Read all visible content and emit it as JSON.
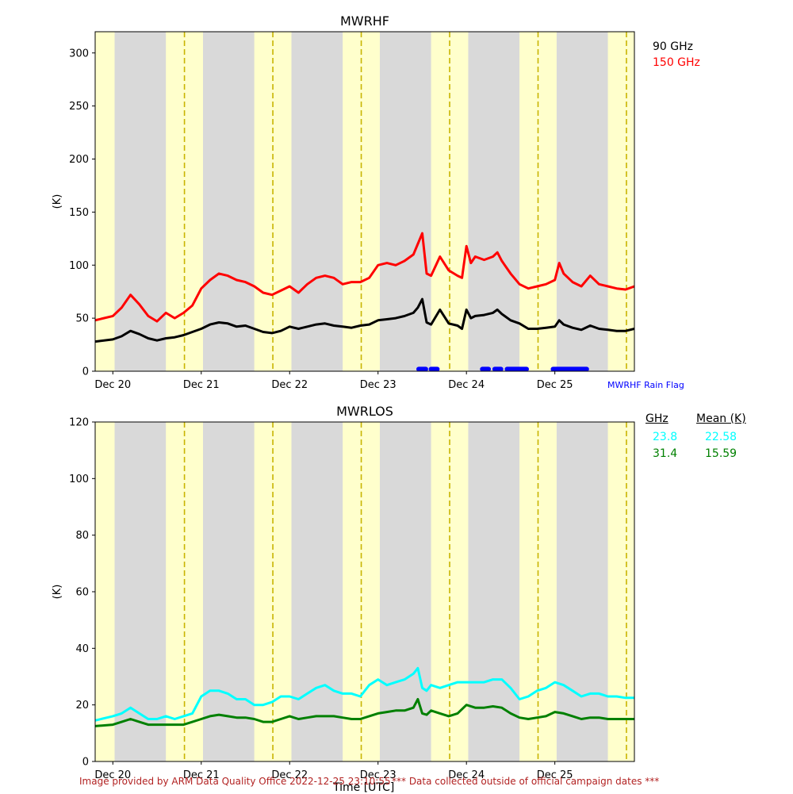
{
  "chart_data": [
    {
      "type": "line",
      "title": "MWRHF",
      "ylabel": "(K)",
      "ylim": [
        0,
        320
      ],
      "yticks": [
        0,
        50,
        100,
        150,
        200,
        250,
        300
      ],
      "xlim": [
        -0.2,
        5.9
      ],
      "xticks": [
        0,
        1,
        2,
        3,
        4,
        5
      ],
      "xticklabels": [
        "Dec 20",
        "Dec 21",
        "Dec 22",
        "Dec 23",
        "Dec 24",
        "Dec 25"
      ],
      "day_bands": [
        [
          -0.2,
          0.02
        ],
        [
          0.6,
          1.02
        ],
        [
          1.6,
          2.02
        ],
        [
          2.6,
          3.02
        ],
        [
          3.6,
          4.02
        ],
        [
          4.6,
          5.02
        ],
        [
          5.6,
          5.9
        ]
      ],
      "noon_lines": [
        0.81,
        1.81,
        2.81,
        3.81,
        4.81,
        5.81
      ],
      "series": [
        {
          "name": "90 GHz",
          "color": "#000000",
          "x": [
            -0.2,
            0.0,
            0.1,
            0.2,
            0.3,
            0.4,
            0.5,
            0.6,
            0.7,
            0.8,
            0.9,
            1.0,
            1.1,
            1.2,
            1.3,
            1.4,
            1.5,
            1.6,
            1.7,
            1.8,
            1.9,
            2.0,
            2.1,
            2.2,
            2.3,
            2.4,
            2.5,
            2.6,
            2.7,
            2.8,
            2.9,
            3.0,
            3.1,
            3.2,
            3.3,
            3.4,
            3.45,
            3.5,
            3.55,
            3.6,
            3.7,
            3.8,
            3.9,
            3.95,
            4.0,
            4.05,
            4.1,
            4.2,
            4.3,
            4.35,
            4.4,
            4.5,
            4.6,
            4.7,
            4.8,
            4.9,
            5.0,
            5.05,
            5.1,
            5.2,
            5.3,
            5.4,
            5.5,
            5.6,
            5.7,
            5.8,
            5.9
          ],
          "y": [
            28,
            30,
            33,
            38,
            35,
            31,
            29,
            31,
            32,
            34,
            37,
            40,
            44,
            46,
            45,
            42,
            43,
            40,
            37,
            36,
            38,
            42,
            40,
            42,
            44,
            45,
            43,
            42,
            41,
            43,
            44,
            48,
            49,
            50,
            52,
            55,
            60,
            68,
            46,
            44,
            58,
            45,
            43,
            40,
            58,
            50,
            52,
            53,
            55,
            58,
            54,
            48,
            45,
            40,
            40,
            41,
            42,
            48,
            44,
            41,
            39,
            43,
            40,
            39,
            38,
            38,
            40
          ]
        },
        {
          "name": "150 GHz",
          "color": "#ff0000",
          "x": [
            -0.2,
            0.0,
            0.1,
            0.2,
            0.3,
            0.4,
            0.5,
            0.6,
            0.7,
            0.8,
            0.9,
            1.0,
            1.1,
            1.2,
            1.3,
            1.4,
            1.5,
            1.6,
            1.7,
            1.8,
            1.9,
            2.0,
            2.1,
            2.2,
            2.3,
            2.4,
            2.5,
            2.6,
            2.7,
            2.8,
            2.9,
            3.0,
            3.1,
            3.2,
            3.3,
            3.4,
            3.45,
            3.5,
            3.55,
            3.6,
            3.7,
            3.8,
            3.9,
            3.95,
            4.0,
            4.05,
            4.1,
            4.2,
            4.3,
            4.35,
            4.4,
            4.5,
            4.6,
            4.7,
            4.8,
            4.9,
            5.0,
            5.05,
            5.1,
            5.2,
            5.3,
            5.4,
            5.5,
            5.6,
            5.7,
            5.8,
            5.9
          ],
          "y": [
            48,
            52,
            60,
            72,
            63,
            52,
            47,
            55,
            50,
            55,
            62,
            78,
            86,
            92,
            90,
            86,
            84,
            80,
            74,
            72,
            76,
            80,
            74,
            82,
            88,
            90,
            88,
            82,
            84,
            84,
            88,
            100,
            102,
            100,
            104,
            110,
            120,
            130,
            92,
            90,
            108,
            95,
            90,
            88,
            118,
            102,
            108,
            105,
            108,
            112,
            104,
            92,
            82,
            78,
            80,
            82,
            86,
            102,
            92,
            84,
            80,
            90,
            82,
            80,
            78,
            77,
            80
          ]
        }
      ],
      "rain_flag": {
        "label": "MWRHF Rain Flag",
        "color": "#0000ff",
        "value": 2,
        "segments": [
          [
            3.46,
            3.54
          ],
          [
            3.6,
            3.67
          ],
          [
            4.18,
            4.25
          ],
          [
            4.32,
            4.39
          ],
          [
            4.46,
            4.68
          ],
          [
            4.98,
            5.36
          ]
        ]
      },
      "legend": [
        {
          "label": "90 GHz",
          "color": "#000000"
        },
        {
          "label": "150 GHz",
          "color": "#ff0000"
        }
      ]
    },
    {
      "type": "line",
      "title": "MWRLOS",
      "ylabel": "(K)",
      "xlabel": "Time [UTC]",
      "ylim": [
        0,
        120
      ],
      "yticks": [
        0,
        20,
        40,
        60,
        80,
        100,
        120
      ],
      "xlim": [
        -0.2,
        5.9
      ],
      "xticks": [
        0,
        1,
        2,
        3,
        4,
        5
      ],
      "xticklabels": [
        "Dec 20",
        "Dec 21",
        "Dec 22",
        "Dec 23",
        "Dec 24",
        "Dec 25"
      ],
      "day_bands": [
        [
          -0.2,
          0.02
        ],
        [
          0.6,
          1.02
        ],
        [
          1.6,
          2.02
        ],
        [
          2.6,
          3.02
        ],
        [
          3.6,
          4.02
        ],
        [
          4.6,
          5.02
        ],
        [
          5.6,
          5.9
        ]
      ],
      "noon_lines": [
        0.81,
        1.81,
        2.81,
        3.81,
        4.81,
        5.81
      ],
      "series": [
        {
          "name": "23.8",
          "color": "#00ffff",
          "x": [
            -0.2,
            0.0,
            0.1,
            0.2,
            0.3,
            0.4,
            0.5,
            0.6,
            0.7,
            0.8,
            0.9,
            1.0,
            1.1,
            1.2,
            1.3,
            1.4,
            1.5,
            1.6,
            1.7,
            1.8,
            1.9,
            2.0,
            2.1,
            2.2,
            2.3,
            2.4,
            2.5,
            2.6,
            2.7,
            2.8,
            2.9,
            3.0,
            3.1,
            3.2,
            3.3,
            3.4,
            3.45,
            3.5,
            3.55,
            3.6,
            3.7,
            3.8,
            3.9,
            4.0,
            4.1,
            4.2,
            4.3,
            4.4,
            4.5,
            4.6,
            4.7,
            4.8,
            4.9,
            5.0,
            5.1,
            5.2,
            5.3,
            5.4,
            5.5,
            5.6,
            5.7,
            5.8,
            5.9
          ],
          "y": [
            14.5,
            16,
            17,
            19,
            17,
            15,
            15,
            16,
            15,
            16,
            17,
            23,
            25,
            25,
            24,
            22,
            22,
            20,
            20,
            21,
            23,
            23,
            22,
            24,
            26,
            27,
            25,
            24,
            24,
            23,
            27,
            29,
            27,
            28,
            29,
            31,
            33,
            26,
            25,
            27,
            26,
            27,
            28,
            28,
            28,
            28,
            29,
            29,
            26,
            22,
            23,
            25,
            26,
            28,
            27,
            25,
            23,
            24,
            24,
            23,
            23,
            22.5,
            22.5
          ]
        },
        {
          "name": "31.4",
          "color": "#008000",
          "x": [
            -0.2,
            0.0,
            0.1,
            0.2,
            0.3,
            0.4,
            0.5,
            0.6,
            0.7,
            0.8,
            0.9,
            1.0,
            1.1,
            1.2,
            1.3,
            1.4,
            1.5,
            1.6,
            1.7,
            1.8,
            1.9,
            2.0,
            2.1,
            2.2,
            2.3,
            2.4,
            2.5,
            2.6,
            2.7,
            2.8,
            2.9,
            3.0,
            3.1,
            3.2,
            3.3,
            3.4,
            3.45,
            3.5,
            3.55,
            3.6,
            3.7,
            3.8,
            3.9,
            4.0,
            4.1,
            4.2,
            4.3,
            4.4,
            4.5,
            4.6,
            4.7,
            4.8,
            4.9,
            5.0,
            5.1,
            5.2,
            5.3,
            5.4,
            5.5,
            5.6,
            5.7,
            5.8,
            5.9
          ],
          "y": [
            12.5,
            13,
            14,
            15,
            14,
            13,
            13,
            13,
            13,
            13,
            14,
            15,
            16,
            16.5,
            16,
            15.5,
            15.5,
            15,
            14,
            14,
            15,
            16,
            15,
            15.5,
            16,
            16,
            16,
            15.5,
            15,
            15,
            16,
            17,
            17.5,
            18,
            18,
            19,
            22,
            17,
            16.5,
            18,
            17,
            16,
            17,
            20,
            19,
            19,
            19.5,
            19,
            17,
            15.5,
            15,
            15.5,
            16,
            17.5,
            17,
            16,
            15,
            15.5,
            15.5,
            15,
            15,
            15,
            15
          ]
        }
      ],
      "legend_headers": {
        "freq": "GHz",
        "mean": "Mean (K)"
      },
      "legend": [
        {
          "freq": "23.8",
          "mean": "22.58",
          "color": "#00ffff"
        },
        {
          "freq": "31.4",
          "mean": "15.59",
          "color": "#008000"
        }
      ]
    }
  ],
  "footer": {
    "credit": "Image provided by ARM Data Quality Office 2022-12-25 23:10:55",
    "notice": "*** Data collected outside of official campaign dates ***"
  },
  "colors": {
    "night_band": "#d9d9d9",
    "day_band": "#ffffcc",
    "noon_line": "#c8b400",
    "footer_text": "#b22222"
  }
}
